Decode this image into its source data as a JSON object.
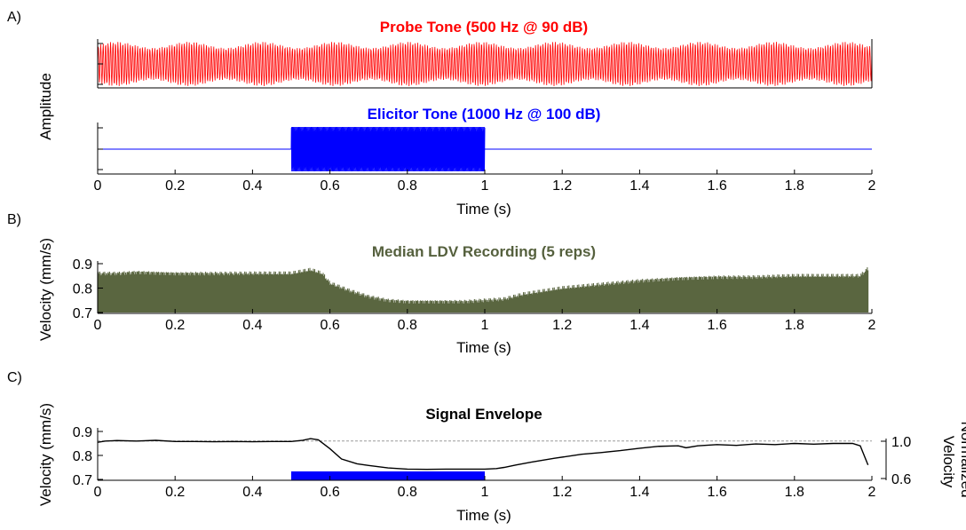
{
  "colors": {
    "probe": "#ff0000",
    "elicitor": "#0000ff",
    "ldv": "#5a6640",
    "envelope": "#000000",
    "ref_line": "#9a9a9a",
    "bar": "#0000ff"
  },
  "chart_data": [
    {
      "panel_label": "A)",
      "type": "line",
      "title": "Probe Tone (500 Hz @ 90 dB)",
      "ylabel": "Amplitude",
      "xlim": [
        0,
        2
      ],
      "signal": {
        "kind": "sine",
        "freq_hz": 500,
        "start": 0,
        "end": 2,
        "amplitude": 1
      }
    },
    {
      "type": "line",
      "title": "Elicitor Tone (1000 Hz @ 100 dB)",
      "ylabel": "Amplitude",
      "xlabel": "Time (s)",
      "xlim": [
        0,
        2
      ],
      "x_ticks": [
        "0",
        "0.2",
        "0.4",
        "0.6",
        "0.8",
        "1",
        "1.2",
        "1.4",
        "1.6",
        "1.8",
        "2"
      ],
      "signal": {
        "kind": "sine",
        "freq_hz": 1000,
        "start": 0.5,
        "end": 1.0,
        "amplitude": 1
      }
    },
    {
      "panel_label": "B)",
      "type": "line",
      "title": "Median LDV Recording (5 reps)",
      "xlabel": "Time (s)",
      "ylabel": "Velocity (mm/s)",
      "xlim": [
        0,
        2
      ],
      "ylim": [
        0.7,
        0.9
      ],
      "y_ticks": [
        "0.7",
        "0.8",
        "0.9"
      ],
      "x_ticks": [
        "0",
        "0.2",
        "0.4",
        "0.6",
        "0.8",
        "1",
        "1.2",
        "1.4",
        "1.6",
        "1.8",
        "2"
      ],
      "envelope": {
        "t": [
          0,
          0.05,
          0.1,
          0.2,
          0.3,
          0.4,
          0.5,
          0.55,
          0.58,
          0.6,
          0.65,
          0.7,
          0.75,
          0.8,
          0.85,
          0.9,
          0.95,
          1.0,
          1.05,
          1.1,
          1.2,
          1.3,
          1.4,
          1.5,
          1.6,
          1.7,
          1.8,
          1.9,
          1.97,
          1.99
        ],
        "v": [
          0.86,
          0.86,
          0.865,
          0.86,
          0.86,
          0.86,
          0.86,
          0.875,
          0.86,
          0.82,
          0.79,
          0.765,
          0.75,
          0.745,
          0.745,
          0.745,
          0.745,
          0.75,
          0.755,
          0.775,
          0.8,
          0.815,
          0.83,
          0.84,
          0.845,
          0.845,
          0.85,
          0.85,
          0.85,
          0.88
        ]
      }
    },
    {
      "panel_label": "C)",
      "type": "line",
      "title": "Signal Envelope",
      "xlabel": "Time (s)",
      "ylabel": "Velocity (mm/s)",
      "y2label": "Normalized Velocity",
      "xlim": [
        0,
        2
      ],
      "ylim": [
        0.7,
        0.9
      ],
      "y_ticks": [
        "0.7",
        "0.8",
        "0.9"
      ],
      "y2_ticks": [
        "0.6",
        "1.0"
      ],
      "x_ticks": [
        "0",
        "0.2",
        "0.4",
        "0.6",
        "0.8",
        "1",
        "1.2",
        "1.4",
        "1.6",
        "1.8",
        "2"
      ],
      "reference_line": 0.86,
      "elicitor_bar": {
        "start": 0.5,
        "end": 1.0
      },
      "series": [
        {
          "t": [
            0,
            0.02,
            0.05,
            0.1,
            0.15,
            0.2,
            0.25,
            0.3,
            0.35,
            0.4,
            0.45,
            0.5,
            0.53,
            0.55,
            0.57,
            0.6,
            0.63,
            0.67,
            0.7,
            0.75,
            0.8,
            0.85,
            0.9,
            0.95,
            1.0,
            1.03,
            1.05,
            1.08,
            1.12,
            1.18,
            1.25,
            1.3,
            1.35,
            1.4,
            1.45,
            1.5,
            1.52,
            1.55,
            1.6,
            1.65,
            1.7,
            1.75,
            1.8,
            1.85,
            1.9,
            1.95,
            1.97,
            1.99
          ],
          "v": [
            0.855,
            0.86,
            0.862,
            0.86,
            0.863,
            0.858,
            0.858,
            0.857,
            0.858,
            0.857,
            0.858,
            0.858,
            0.863,
            0.87,
            0.865,
            0.828,
            0.785,
            0.765,
            0.758,
            0.748,
            0.743,
            0.742,
            0.743,
            0.743,
            0.743,
            0.745,
            0.75,
            0.76,
            0.772,
            0.788,
            0.805,
            0.812,
            0.82,
            0.83,
            0.838,
            0.84,
            0.832,
            0.84,
            0.845,
            0.842,
            0.848,
            0.845,
            0.85,
            0.847,
            0.85,
            0.85,
            0.84,
            0.76
          ]
        }
      ]
    }
  ]
}
